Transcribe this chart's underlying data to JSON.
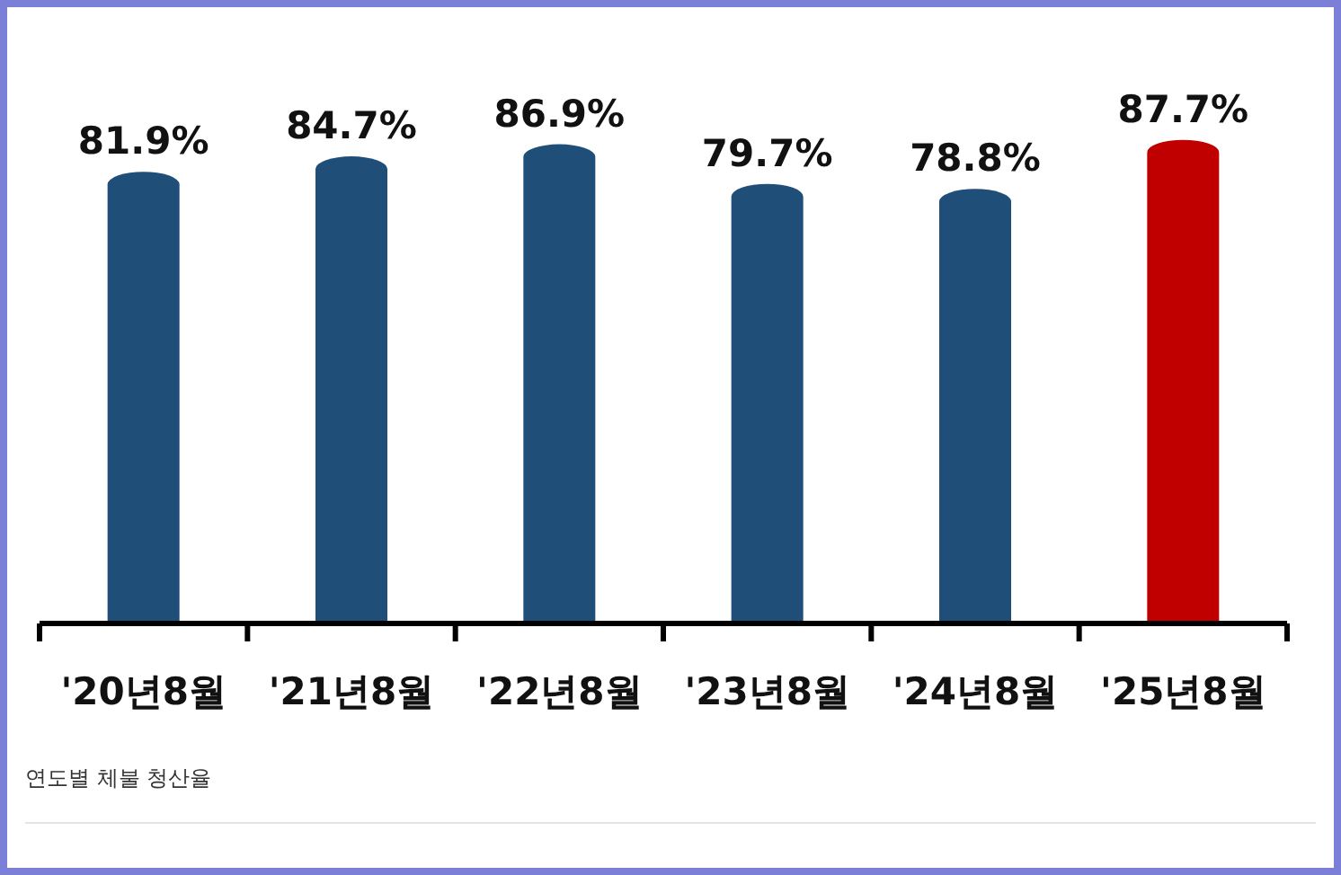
{
  "chart_data": {
    "type": "bar",
    "categories": [
      "'20년8월",
      "'21년8월",
      "'22년8월",
      "'23년8월",
      "'24년8월",
      "'25년8월"
    ],
    "values": [
      81.9,
      84.7,
      86.9,
      79.7,
      78.8,
      87.7
    ],
    "colors": [
      "#1f4e79",
      "#1f4e79",
      "#1f4e79",
      "#1f4e79",
      "#1f4e79",
      "#c00000"
    ],
    "value_labels": [
      "81.9%",
      "84.7%",
      "86.9%",
      "79.7%",
      "78.8%",
      "87.7%"
    ],
    "relative": false,
    "annotations": [
      "연도별 체불 청산율"
    ]
  }
}
